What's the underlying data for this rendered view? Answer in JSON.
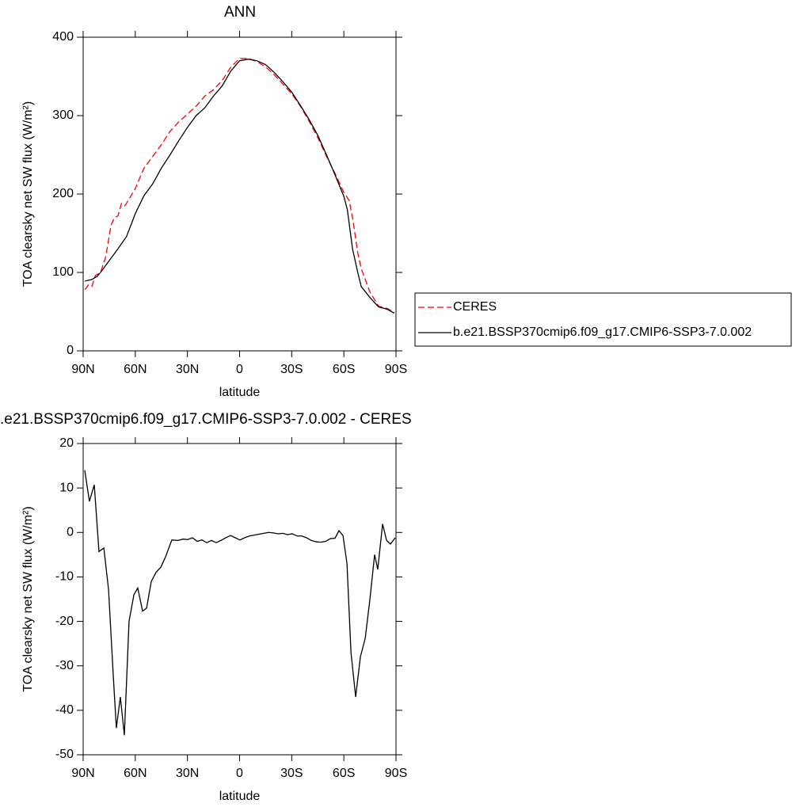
{
  "chart_data": [
    {
      "type": "line",
      "title": "ANN",
      "xlabel": "latitude",
      "ylabel": "TOA clearsky net SW flux (W/m²)",
      "xlim": [
        90,
        -90
      ],
      "ylim": [
        0,
        400
      ],
      "xticks": [
        {
          "value": 90,
          "label": "90N"
        },
        {
          "value": 60,
          "label": "60N"
        },
        {
          "value": 30,
          "label": "30N"
        },
        0,
        {
          "value": -30,
          "label": "30S"
        },
        {
          "value": -60,
          "label": "60S"
        },
        {
          "value": -90,
          "label": "90S"
        }
      ],
      "yticks": [
        0,
        100,
        200,
        300,
        400
      ],
      "legend": "right",
      "series": [
        {
          "name": "CERES",
          "color": "#ff0000",
          "dash": true,
          "x": [
            89,
            87,
            85,
            83,
            80,
            77,
            74,
            72,
            70,
            68,
            66,
            64,
            60,
            57,
            55,
            50,
            45,
            40,
            35,
            30,
            25,
            20,
            15,
            10,
            5,
            0,
            -5,
            -10,
            -15,
            -20,
            -25,
            -30,
            -35,
            -40,
            -45,
            -50,
            -55,
            -60,
            -63,
            -65,
            -68,
            -70,
            -75,
            -80,
            -85,
            -89
          ],
          "values": [
            78,
            84,
            82,
            96,
            100,
            120,
            160,
            170,
            172,
            188,
            185,
            192,
            207,
            223,
            233,
            248,
            263,
            280,
            292,
            302,
            312,
            325,
            333,
            345,
            362,
            373,
            373,
            369,
            362,
            352,
            340,
            328,
            312,
            293,
            272,
            248,
            226,
            202,
            192,
            170,
            125,
            105,
            75,
            57,
            54,
            49
          ]
        },
        {
          "name": "b.e21.BSSP370cmip6.f09_g17.CMIP6-SSP3-7.0.002",
          "color": "#000000",
          "dash": false,
          "x": [
            89,
            85,
            82,
            80,
            75,
            70,
            65,
            60,
            55,
            50,
            45,
            40,
            35,
            30,
            25,
            20,
            15,
            10,
            5,
            0,
            -5,
            -10,
            -15,
            -20,
            -25,
            -30,
            -35,
            -40,
            -45,
            -50,
            -55,
            -60,
            -62,
            -65,
            -68,
            -70,
            -75,
            -80,
            -85,
            -89
          ],
          "values": [
            89,
            91,
            95,
            100,
            115,
            130,
            146,
            175,
            198,
            213,
            233,
            250,
            268,
            285,
            300,
            310,
            325,
            338,
            357,
            370,
            372,
            370,
            365,
            355,
            343,
            330,
            313,
            295,
            275,
            250,
            224,
            197,
            180,
            130,
            100,
            82,
            68,
            56,
            53,
            48
          ]
        }
      ]
    },
    {
      "type": "line",
      "title": ".e21.BSSP370cmip6.f09_g17.CMIP6-SSP3-7.0.002 - CERES",
      "xlabel": "latitude",
      "ylabel": "TOA clearsky net SW flux (W/m²)",
      "xlim": [
        90,
        -90
      ],
      "ylim": [
        -50,
        20
      ],
      "xticks": [
        {
          "value": 90,
          "label": "90N"
        },
        {
          "value": 60,
          "label": "60N"
        },
        {
          "value": 30,
          "label": "30N"
        },
        0,
        {
          "value": -30,
          "label": "30S"
        },
        {
          "value": -60,
          "label": "60S"
        },
        {
          "value": -90,
          "label": "90S"
        }
      ],
      "yticks": [
        -50,
        -40,
        -30,
        -20,
        -10,
        0,
        10,
        20
      ],
      "series": [
        {
          "color": "#000000",
          "dash": false,
          "x": [
            89.1,
            86.4,
            83.6,
            80.9,
            78.1,
            75.4,
            72.7,
            70.9,
            68.6,
            66.3,
            63.6,
            60.8,
            58.6,
            55.8,
            53.5,
            50.8,
            48.1,
            45.3,
            42.6,
            39.0,
            35.3,
            32.6,
            29.8,
            27.1,
            24.4,
            21.6,
            18.9,
            16.2,
            13.4,
            10.7,
            8.0,
            5.2,
            2.5,
            -0.2,
            -2.9,
            -5.7,
            -8.4,
            -11.2,
            -13.9,
            -16.7,
            -19.4,
            -22.1,
            -24.9,
            -27.6,
            -30.3,
            -33.1,
            -35.8,
            -38.5,
            -41.3,
            -44.0,
            -46.7,
            -49.5,
            -52.2,
            -54.9,
            -57.2,
            -59.5,
            -61.8,
            -64.1,
            -66.8,
            -69.5,
            -72.3,
            -75.0,
            -77.7,
            -79.5,
            -82.3,
            -84.6,
            -86.8,
            -89.6
          ],
          "values": [
            14,
            7,
            10.7,
            -4.3,
            -3.5,
            -12.8,
            -32,
            -44,
            -37,
            -45.6,
            -20,
            -14,
            -12.5,
            -17.7,
            -17,
            -11,
            -9,
            -7.8,
            -5.5,
            -1.7,
            -1.8,
            -1.5,
            -1.6,
            -1.2,
            -2,
            -1.7,
            -2.3,
            -1.8,
            -2.3,
            -1.8,
            -1.2,
            -0.7,
            -1.2,
            -1.7,
            -1.2,
            -0.8,
            -0.6,
            -0.4,
            -0.2,
            0,
            -0.1,
            -0.3,
            -0.2,
            -0.5,
            -0.3,
            -0.8,
            -0.8,
            -1.2,
            -1.8,
            -2.1,
            -2.2,
            -2,
            -1.4,
            -1.3,
            0.4,
            -0.7,
            -7,
            -27,
            -37,
            -28,
            -23.8,
            -15,
            -5,
            -8.3,
            1.9,
            -1.8,
            -2.6,
            -1.2
          ]
        }
      ]
    }
  ]
}
